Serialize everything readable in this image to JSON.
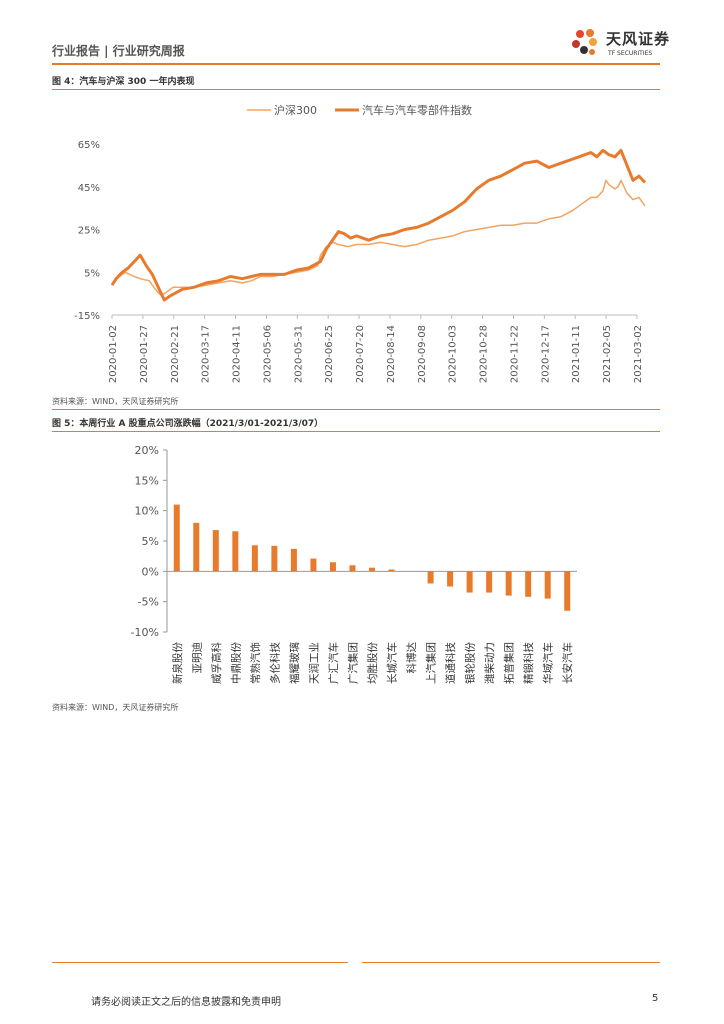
{
  "header": {
    "left_text": "行业报告 | 行业研究周报",
    "logo_cn": "天风证券",
    "logo_en": "TF SECURITIES"
  },
  "colors": {
    "accent": "#E87A2C",
    "line_light": "#F4A460",
    "line_dark": "#E87A2C"
  },
  "figure4": {
    "title": "图 4：汽车与沪深 300 一年内表现",
    "source": "资料来源：WIND，天风证券研究所"
  },
  "figure5": {
    "title": "图 5：本周行业 A 股重点公司涨跌幅（2021/3/01-2021/3/07）",
    "source": "资料来源：WIND，天风证券研究所"
  },
  "chart_data": [
    {
      "type": "line",
      "title": "",
      "x_tick_labels": [
        "2020-01-02",
        "2020-01-27",
        "2020-02-21",
        "2020-03-17",
        "2020-04-11",
        "2020-05-06",
        "2020-05-31",
        "2020-06-25",
        "2020-07-20",
        "2020-08-14",
        "2020-09-08",
        "2020-10-03",
        "2020-10-28",
        "2020-11-22",
        "2020-12-17",
        "2021-01-11",
        "2021-02-05",
        "2021-03-02"
      ],
      "y_tick_labels": [
        "65%",
        "45%",
        "25%",
        "5%",
        "-15%"
      ],
      "ylim": [
        -15,
        65
      ],
      "legend": [
        "沪深300",
        "汽车与汽车零部件指数"
      ],
      "series": [
        {
          "name": "沪深300",
          "points": [
            [
              0.153,
              -1
            ],
            [
              0.16,
              2
            ],
            [
              0.175,
              5
            ],
            [
              0.19,
              3
            ],
            [
              0.2,
              2
            ],
            [
              0.215,
              1
            ],
            [
              0.225,
              -3
            ],
            [
              0.235,
              -6
            ],
            [
              0.245,
              -4
            ],
            [
              0.255,
              -2
            ],
            [
              0.27,
              -2
            ],
            [
              0.29,
              -2
            ],
            [
              0.31,
              -1
            ],
            [
              0.33,
              0
            ],
            [
              0.35,
              1
            ],
            [
              0.37,
              0
            ],
            [
              0.385,
              1
            ],
            [
              0.4,
              3
            ],
            [
              0.42,
              3
            ],
            [
              0.44,
              4
            ],
            [
              0.46,
              5
            ],
            [
              0.48,
              6
            ],
            [
              0.495,
              8
            ],
            [
              0.5,
              13
            ],
            [
              0.51,
              17
            ],
            [
              0.52,
              19
            ],
            [
              0.53,
              18
            ],
            [
              0.545,
              17
            ],
            [
              0.56,
              18
            ],
            [
              0.58,
              18
            ],
            [
              0.6,
              19
            ],
            [
              0.62,
              18
            ],
            [
              0.64,
              17
            ],
            [
              0.66,
              18
            ],
            [
              0.68,
              20
            ],
            [
              0.7,
              21
            ],
            [
              0.72,
              22
            ],
            [
              0.74,
              24
            ],
            [
              0.76,
              25
            ],
            [
              0.78,
              26
            ],
            [
              0.8,
              27
            ],
            [
              0.82,
              27
            ],
            [
              0.84,
              28
            ],
            [
              0.86,
              28
            ],
            [
              0.88,
              30
            ],
            [
              0.9,
              31
            ],
            [
              0.92,
              34
            ],
            [
              0.94,
              38
            ],
            [
              0.95,
              40
            ],
            [
              0.96,
              40
            ],
            [
              0.97,
              43
            ],
            [
              0.975,
              48
            ],
            [
              0.98,
              46
            ],
            [
              0.985,
              45
            ],
            [
              0.99,
              44
            ],
            [
              0.995,
              45
            ],
            [
              1.0,
              48
            ],
            [
              1.01,
              42
            ],
            [
              1.02,
              39
            ],
            [
              1.03,
              40
            ],
            [
              1.04,
              36
            ]
          ]
        },
        {
          "name": "汽车与汽车零部件指数",
          "points": [
            [
              0.153,
              -1
            ],
            [
              0.16,
              2
            ],
            [
              0.17,
              5
            ],
            [
              0.18,
              7
            ],
            [
              0.19,
              10
            ],
            [
              0.2,
              13
            ],
            [
              0.21,
              8
            ],
            [
              0.22,
              4
            ],
            [
              0.23,
              -2
            ],
            [
              0.24,
              -8
            ],
            [
              0.25,
              -6
            ],
            [
              0.27,
              -3
            ],
            [
              0.29,
              -2
            ],
            [
              0.31,
              0
            ],
            [
              0.33,
              1
            ],
            [
              0.35,
              3
            ],
            [
              0.37,
              2
            ],
            [
              0.385,
              3
            ],
            [
              0.4,
              4
            ],
            [
              0.42,
              4
            ],
            [
              0.44,
              4
            ],
            [
              0.46,
              6
            ],
            [
              0.48,
              7
            ],
            [
              0.5,
              10
            ],
            [
              0.51,
              16
            ],
            [
              0.52,
              20
            ],
            [
              0.53,
              24
            ],
            [
              0.54,
              23
            ],
            [
              0.55,
              21
            ],
            [
              0.56,
              22
            ],
            [
              0.58,
              20
            ],
            [
              0.6,
              22
            ],
            [
              0.62,
              23
            ],
            [
              0.64,
              25
            ],
            [
              0.66,
              26
            ],
            [
              0.68,
              28
            ],
            [
              0.7,
              31
            ],
            [
              0.72,
              34
            ],
            [
              0.74,
              38
            ],
            [
              0.76,
              44
            ],
            [
              0.78,
              48
            ],
            [
              0.8,
              50
            ],
            [
              0.82,
              53
            ],
            [
              0.84,
              56
            ],
            [
              0.86,
              57
            ],
            [
              0.88,
              54
            ],
            [
              0.9,
              56
            ],
            [
              0.92,
              58
            ],
            [
              0.94,
              60
            ],
            [
              0.95,
              61
            ],
            [
              0.96,
              59
            ],
            [
              0.97,
              62
            ],
            [
              0.98,
              60
            ],
            [
              0.99,
              59
            ],
            [
              1.0,
              62
            ],
            [
              1.01,
              55
            ],
            [
              1.02,
              48
            ],
            [
              1.03,
              50
            ],
            [
              1.04,
              47
            ]
          ]
        }
      ]
    },
    {
      "type": "bar",
      "title": "",
      "categories": [
        "新泉股份",
        "亚明迪",
        "威孚高科",
        "中鼎股份",
        "常熟汽饰",
        "多伦科技",
        "福耀玻璃",
        "天润工业",
        "广汇汽车",
        "广汽集团",
        "均胜股份",
        "长城汽车",
        "科博达",
        "上汽集团",
        "道通科技",
        "银轮股份",
        "潍柴动力",
        "拓普集团",
        "精锻科技",
        "华域汽车",
        "长安汽车"
      ],
      "values": [
        11.0,
        8.0,
        6.8,
        6.6,
        4.3,
        4.2,
        3.7,
        2.1,
        1.5,
        1.0,
        0.6,
        0.3,
        0.0,
        -2.0,
        -2.5,
        -3.5,
        -3.5,
        -4.0,
        -4.2,
        -4.5,
        -6.5
      ],
      "y_tick_labels": [
        "20%",
        "15%",
        "10%",
        "5%",
        "0%",
        "-5%",
        "-10%"
      ],
      "ylim": [
        -10,
        20
      ]
    }
  ],
  "footer": {
    "disclaimer": "请务必阅读正文之后的信息披露和免责申明",
    "page_number": "5"
  }
}
